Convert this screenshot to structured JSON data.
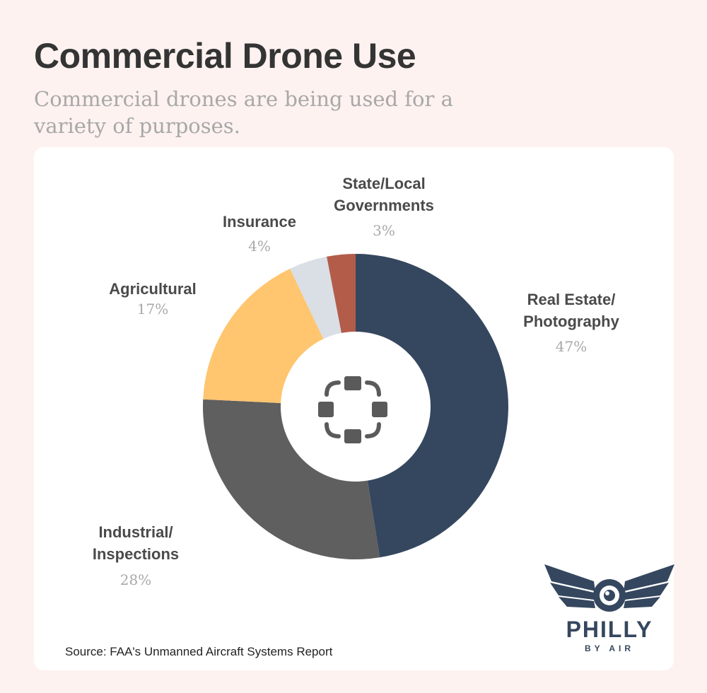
{
  "title": "Commercial Drone Use",
  "subtitle": "Commercial drones are being used for a variety of purposes.",
  "source": "Source: FAA's Unmanned Aircraft Systems Report",
  "logo": {
    "name": "PHILLY",
    "sub": "BY AIR",
    "icon": "winged-drone-logo"
  },
  "center_icon": "drone-icon",
  "colors": {
    "background": "#fdf2ef",
    "card": "#ffffff",
    "real_estate": "#35475f",
    "industrial": "#5f5f5f",
    "agricultural": "#ffc56f",
    "insurance": "#d9dfe5",
    "state_local": "#b35c4a"
  },
  "chart_data": {
    "type": "pie",
    "donut": true,
    "labels": [
      "Real Estate/\nPhotography",
      "Industrial/\nInspections",
      "Agricultural",
      "Insurance",
      "State/Local\nGovernments"
    ],
    "values": [
      47,
      28,
      17,
      4,
      3
    ],
    "value_labels": [
      "47%",
      "28%",
      "17%",
      "4%",
      "3%"
    ],
    "colors": [
      "#35475f",
      "#5f5f5f",
      "#ffc56f",
      "#d9dfe5",
      "#b35c4a"
    ],
    "start": "top",
    "direction": "clockwise"
  }
}
